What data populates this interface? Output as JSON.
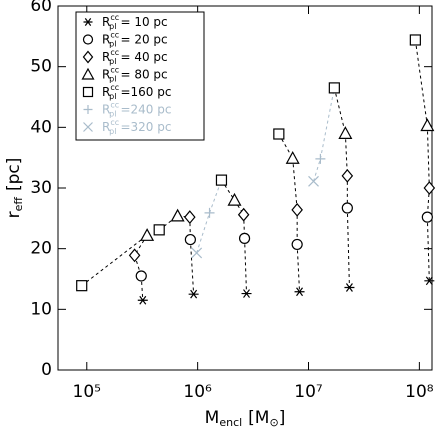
{
  "chart_data": {
    "type": "scatter",
    "xlabel": {
      "main": "M",
      "sub": "encl",
      "unit": "[M",
      "unit_sub": "⊙",
      "close": "]"
    },
    "ylabel": {
      "main": "r",
      "sub": "eff",
      "unit": "[pc]"
    },
    "legend_symbol": {
      "main": "R",
      "sup": "cc",
      "sub": "pl"
    },
    "legend_position": "upper left",
    "xscale": "log",
    "xlim": [
      55000,
      130000000
    ],
    "ylim": [
      0,
      60
    ],
    "xticks": [
      {
        "value": 100000,
        "label": "10⁵"
      },
      {
        "value": 1000000,
        "label": "10⁶"
      },
      {
        "value": 10000000,
        "label": "10⁷"
      },
      {
        "value": 100000000,
        "label": "10⁸"
      }
    ],
    "yticks": [
      0,
      10,
      20,
      30,
      40,
      50,
      60
    ],
    "series": [
      {
        "name": "= 10 pc",
        "marker": "asterisk",
        "color": "#000000",
        "x": [
          320000,
          920000,
          2760000,
          8300000,
          23400000,
          123000000
        ],
        "values": [
          11.5,
          12.5,
          12.6,
          12.9,
          13.6,
          14.7
        ]
      },
      {
        "name": "= 20 pc",
        "marker": "circle",
        "color": "#000000",
        "x": [
          310000,
          860000,
          2650000,
          7900000,
          22400000,
          118000000
        ],
        "values": [
          15.5,
          21.5,
          21.7,
          20.7,
          26.7,
          25.2
        ]
      },
      {
        "name": "= 40 pc",
        "marker": "diamond",
        "color": "#000000",
        "x": [
          270000,
          850000,
          2600000,
          7900000,
          22400000,
          123000000
        ],
        "values": [
          18.9,
          25.2,
          25.6,
          26.4,
          32.0,
          30.0
        ]
      },
      {
        "name": "= 80 pc",
        "marker": "triangle",
        "color": "#000000",
        "x": [
          350000,
          660000,
          2150000,
          7200000,
          21500000,
          118000000
        ],
        "values": [
          22.2,
          25.4,
          28.0,
          34.9,
          39.0,
          40.3
        ]
      },
      {
        "name": "=160 pc",
        "marker": "square",
        "color": "#000000",
        "x": [
          90000,
          450000,
          1640000,
          5400000,
          17100000,
          92000000
        ],
        "values": [
          13.9,
          23.1,
          31.3,
          38.9,
          46.5,
          54.4
        ]
      },
      {
        "name": "=240 pc",
        "marker": "plus",
        "color": "#a9bccb",
        "x": [
          null,
          null,
          1280000,
          null,
          12800000,
          null
        ],
        "values": [
          null,
          null,
          25.9,
          null,
          34.8,
          null
        ]
      },
      {
        "name": "=320 pc",
        "marker": "cross",
        "color": "#a9bccb",
        "x": [
          null,
          null,
          980000,
          null,
          11100000,
          null
        ],
        "values": [
          null,
          null,
          19.3,
          null,
          31.1,
          null
        ]
      }
    ]
  }
}
